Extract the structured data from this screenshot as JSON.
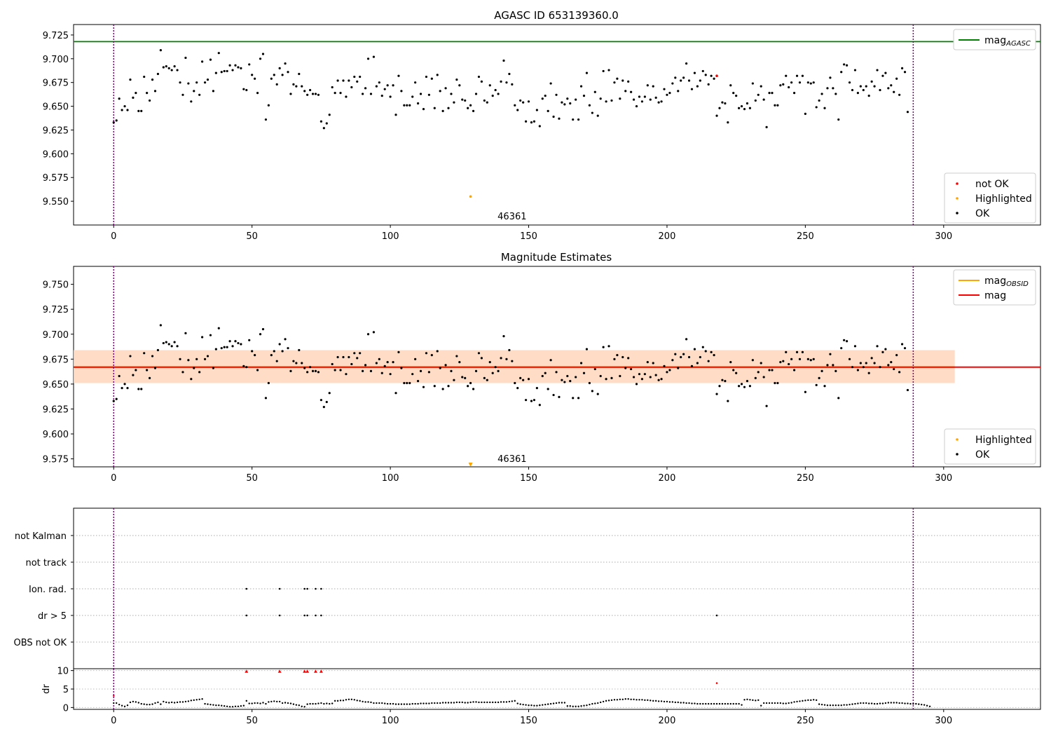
{
  "figure": {
    "title": "AGASC ID 653139360.0",
    "colors": {
      "ok": "#000000",
      "not_ok": "#ff0000",
      "highlight": "#ffa500",
      "agasc": "#008000",
      "obsid": "#ffa500",
      "mag": "#ff0000",
      "band_outer": "#ffc0cb",
      "band_inner": "#ffdab9",
      "boundary": "#800080"
    }
  },
  "chart_data": [
    {
      "type": "scatter",
      "title": "",
      "xlim": [
        -14.5,
        335
      ],
      "ylim": [
        9.525,
        9.736
      ],
      "xticks": [
        0,
        50,
        100,
        150,
        200,
        250,
        300
      ],
      "yticks": [
        9.55,
        9.575,
        9.6,
        9.625,
        9.65,
        9.675,
        9.7,
        9.725
      ],
      "grid": false,
      "mag_agasc": 9.718,
      "vlines": [
        0,
        289
      ],
      "obsid_label": {
        "text": "46361",
        "x": 144,
        "y": 9.531
      },
      "legend_top": [
        {
          "name": "mag",
          "sub": "AGASC",
          "style": "line",
          "color": "#008000"
        }
      ],
      "legend_bottom": [
        {
          "name": "not OK",
          "style": "point",
          "color": "#ff0000"
        },
        {
          "name": "Highlighted",
          "style": "point",
          "color": "#ffa500"
        },
        {
          "name": "OK",
          "style": "point",
          "color": "#000000"
        }
      ],
      "highlighted": [
        {
          "x": 129,
          "y": 9.555
        }
      ],
      "not_ok": [
        {
          "x": 218,
          "y": 9.682
        }
      ],
      "ok_series": [
        9.633,
        9.635,
        9.658,
        9.646,
        9.65,
        9.646,
        9.678,
        9.659,
        9.664,
        9.645,
        9.645,
        9.681,
        9.664,
        9.656,
        9.678,
        9.666,
        9.684,
        9.709,
        9.691,
        9.692,
        9.69,
        9.688,
        9.692,
        9.688,
        9.675,
        9.662,
        9.701,
        9.674,
        9.655,
        9.666,
        9.675,
        9.662,
        9.697,
        9.675,
        9.678,
        9.699,
        9.666,
        9.685,
        9.706,
        9.686,
        9.687,
        9.687,
        9.693,
        9.688,
        9.693,
        9.691,
        9.69,
        9.668,
        9.667,
        9.694,
        9.683,
        9.679,
        9.664,
        9.7,
        9.705,
        9.636,
        9.651,
        9.679,
        9.683,
        9.673,
        9.69,
        9.683,
        9.695,
        9.686,
        9.663,
        9.673,
        9.671,
        9.684,
        9.671,
        9.666,
        9.662,
        9.667,
        9.663,
        9.663,
        9.662,
        9.634,
        9.627,
        9.632,
        9.641,
        9.67,
        9.664,
        9.677,
        9.664,
        9.677,
        9.66,
        9.677,
        9.67,
        9.681,
        9.676,
        9.681,
        9.663,
        9.669,
        9.7,
        9.663,
        9.702,
        9.671,
        9.675,
        9.661,
        9.668,
        9.672,
        9.66,
        9.672,
        9.641,
        9.682,
        9.666,
        9.651,
        9.651,
        9.651,
        9.66,
        9.675,
        9.653,
        9.663,
        9.647,
        9.681,
        9.662,
        9.679,
        9.648,
        9.683,
        9.666,
        9.645,
        9.669,
        9.648,
        9.663,
        9.654,
        9.678,
        9.672,
        9.657,
        9.656,
        9.648,
        9.651,
        9.645,
        9.663,
        9.681,
        9.676,
        9.656,
        9.654,
        9.672,
        9.661,
        9.667,
        9.663,
        9.676,
        9.698,
        9.675,
        9.684,
        9.673,
        9.651,
        9.646,
        9.656,
        9.654,
        9.634,
        9.655,
        9.633,
        9.634,
        9.646,
        9.629,
        9.658,
        9.661,
        9.645,
        9.674,
        9.639,
        9.662,
        9.637,
        9.654,
        9.652,
        9.658,
        9.653,
        9.636,
        9.657,
        9.636,
        9.671,
        9.661,
        9.685,
        9.651,
        9.643,
        9.665,
        9.64,
        9.658,
        9.687,
        9.655,
        9.688,
        9.656,
        9.675,
        9.679,
        9.658,
        9.677,
        9.666,
        9.676,
        9.665,
        9.657,
        9.65,
        9.66,
        9.655,
        9.66,
        9.672,
        9.657,
        9.671,
        9.659,
        9.654,
        9.655,
        9.668,
        9.662,
        9.664,
        9.674,
        9.68,
        9.666,
        9.677,
        9.68,
        9.695,
        9.677,
        9.668,
        9.685,
        9.671,
        9.677,
        9.687,
        9.683,
        9.673,
        9.682,
        9.679,
        9.64,
        9.648,
        9.654,
        9.653,
        9.633,
        9.672,
        9.664,
        9.661,
        9.648,
        9.65,
        9.647,
        9.653,
        9.648,
        9.674,
        9.656,
        9.662,
        9.671,
        9.657,
        9.628,
        9.664,
        9.664,
        9.651,
        9.651,
        9.672,
        9.673,
        9.682,
        9.67,
        9.675,
        9.664,
        9.682,
        9.675,
        9.682,
        9.642,
        9.675,
        9.674,
        9.675,
        9.649,
        9.656,
        9.663,
        9.648,
        9.669,
        9.68,
        9.669,
        9.663,
        9.636,
        9.686,
        9.694,
        9.693,
        9.675,
        9.667,
        9.688,
        9.664,
        9.671,
        9.667,
        9.671,
        9.661,
        9.676,
        9.671,
        9.688,
        9.667,
        9.682,
        9.685,
        9.669,
        9.672,
        9.665,
        9.679,
        9.662,
        9.69,
        9.686,
        9.644
      ]
    },
    {
      "type": "scatter",
      "title": "Magnitude Estimates",
      "xlim": [
        -14.5,
        335
      ],
      "ylim": [
        9.567,
        9.768
      ],
      "xticks": [
        0,
        50,
        100,
        150,
        200,
        250,
        300
      ],
      "yticks": [
        9.575,
        9.6,
        9.625,
        9.65,
        9.675,
        9.7,
        9.725,
        9.75
      ],
      "grid": false,
      "mag": 9.667,
      "band_outer": [
        9.651,
        9.684
      ],
      "band_inner": [
        9.651,
        9.684
      ],
      "band_x": [
        -14.5,
        304
      ],
      "obsid_mag_x": [
        -14.5,
        304
      ],
      "obsid_label": {
        "text": "46361",
        "x": 144,
        "y": 9.572
      },
      "legend_top": [
        {
          "name": "mag",
          "sub": "OBSID",
          "style": "line",
          "color": "#ffa500"
        },
        {
          "name": "mag",
          "sub": "",
          "style": "line",
          "color": "#ff0000"
        }
      ],
      "legend_bottom": [
        {
          "name": "Highlighted",
          "style": "point",
          "color": "#ffa500"
        },
        {
          "name": "OK",
          "style": "point",
          "color": "#000000"
        }
      ],
      "highlighted": [
        {
          "x": 129,
          "y": 9.567,
          "marker": "triangle-down"
        }
      ],
      "vlines": [
        0,
        289
      ]
    },
    {
      "type": "scatter",
      "title": "",
      "xlim": [
        -14.5,
        335
      ],
      "categories": [
        "not Kalman",
        "not track",
        "Ion. rad.",
        "dr > 5",
        "OBS not OK"
      ],
      "flags": {
        "Ion. rad.": [
          48,
          60,
          69,
          70,
          73,
          75
        ],
        "dr > 5": [
          48,
          60,
          69,
          70,
          73,
          75,
          218
        ]
      },
      "vlines": [
        0,
        289
      ],
      "grid": true
    },
    {
      "type": "scatter",
      "title": "",
      "ylabel": "dr",
      "xlim": [
        -14.5,
        335
      ],
      "ylim": [
        -0.5,
        10.5
      ],
      "xticks": [
        0,
        50,
        100,
        150,
        200,
        250,
        300
      ],
      "yticks": [
        0,
        5,
        10
      ],
      "grid": true,
      "vlines": [
        0,
        289
      ],
      "red_points": [
        {
          "x": 0,
          "y": 3.2,
          "marker": "dot"
        },
        {
          "x": 48,
          "y": 9.8,
          "marker": "triangle-up"
        },
        {
          "x": 60,
          "y": 9.8,
          "marker": "triangle-up"
        },
        {
          "x": 69,
          "y": 9.8,
          "marker": "triangle-up"
        },
        {
          "x": 70,
          "y": 9.8,
          "marker": "triangle-up"
        },
        {
          "x": 73,
          "y": 9.8,
          "marker": "triangle-up"
        },
        {
          "x": 75,
          "y": 9.8,
          "marker": "triangle-up"
        },
        {
          "x": 218,
          "y": 6.6,
          "marker": "dot"
        }
      ],
      "dr_series": [
        1.2,
        1.2,
        0.8,
        0.5,
        0.3,
        0.6,
        1.4,
        1.6,
        1.5,
        1.3,
        1.0,
        0.9,
        0.8,
        0.8,
        0.9,
        1.2,
        1.4,
        0.9,
        1.6,
        1.4,
        1.3,
        1.4,
        1.3,
        1.4,
        1.5,
        1.5,
        1.6,
        1.7,
        1.9,
        2.0,
        2.1,
        2.2,
        2.3,
        1.0,
        0.9,
        0.8,
        0.7,
        0.6,
        0.6,
        0.5,
        0.4,
        0.3,
        0.2,
        0.2,
        0.3,
        0.3,
        0.4,
        0.5,
        1.8,
        1.1,
        1.1,
        1.2,
        1.2,
        1.1,
        1.3,
        1.0,
        1.5,
        1.6,
        1.7,
        1.6,
        1.6,
        1.2,
        1.3,
        1.2,
        1.1,
        0.9,
        0.7,
        0.6,
        0.3,
        0.2,
        0.9,
        1.0,
        1.0,
        1.0,
        1.1,
        1.2,
        1.0,
        1.1,
        1.0,
        1.1,
        1.8,
        1.8,
        1.9,
        1.9,
        2.1,
        2.2,
        2.2,
        2.1,
        1.9,
        1.8,
        1.6,
        1.5,
        1.5,
        1.4,
        1.2,
        1.2,
        1.2,
        1.2,
        1.1,
        1.0,
        1.0,
        1.0,
        0.9,
        0.9,
        0.9,
        0.9,
        0.9,
        0.9,
        1.0,
        1.0,
        1.0,
        1.1,
        1.1,
        1.1,
        1.1,
        1.2,
        1.2,
        1.2,
        1.2,
        1.3,
        1.3,
        1.3,
        1.3,
        1.3,
        1.4,
        1.4,
        1.4,
        1.3,
        1.3,
        1.4,
        1.5,
        1.5,
        1.4,
        1.4,
        1.4,
        1.4,
        1.4,
        1.4,
        1.4,
        1.4,
        1.5,
        1.5,
        1.5,
        1.6,
        1.7,
        1.8,
        1.1,
        0.9,
        0.8,
        0.7,
        0.6,
        0.6,
        0.5,
        0.5,
        0.6,
        0.7,
        0.8,
        0.9,
        1.0,
        1.1,
        1.2,
        1.3,
        1.3,
        1.3,
        0.4,
        0.4,
        0.3,
        0.3,
        0.3,
        0.4,
        0.5,
        0.6,
        0.8,
        1.0,
        1.1,
        1.2,
        1.4,
        1.6,
        1.8,
        1.9,
        2.0,
        2.1,
        2.1,
        2.2,
        2.2,
        2.3,
        2.3,
        2.2,
        2.2,
        2.1,
        2.1,
        2.1,
        2.0,
        2.0,
        1.9,
        1.8,
        1.8,
        1.7,
        1.7,
        1.6,
        1.6,
        1.5,
        1.5,
        1.4,
        1.4,
        1.3,
        1.3,
        1.2,
        1.2,
        1.1,
        1.1,
        1.0,
        1.0,
        1.0,
        1.0,
        1.0,
        1.0,
        1.0,
        1.0,
        1.0,
        1.0,
        1.0,
        1.0,
        1.0,
        1.0,
        1.0,
        1.0,
        0.7,
        2.1,
        2.2,
        2.1,
        2.0,
        1.9,
        2.0,
        0.5,
        1.2,
        1.2,
        1.2,
        1.2,
        1.2,
        1.2,
        1.2,
        1.1,
        1.1,
        1.2,
        1.3,
        1.5,
        1.6,
        1.7,
        1.8,
        1.9,
        2.0,
        2.0,
        2.1,
        2.0,
        0.9,
        0.8,
        0.7,
        0.6,
        0.6,
        0.6,
        0.6,
        0.6,
        0.6,
        0.7,
        0.7,
        0.8,
        0.9,
        1.0,
        1.1,
        1.2,
        1.2,
        1.2,
        1.1,
        1.1,
        1.0,
        1.0,
        1.1,
        1.1,
        1.2,
        1.3,
        1.3,
        1.3,
        1.3,
        1.2,
        1.2,
        1.1,
        1.1,
        1.0,
        1.0,
        1.0,
        0.9,
        0.8,
        0.7,
        0.5,
        0.3
      ]
    }
  ]
}
